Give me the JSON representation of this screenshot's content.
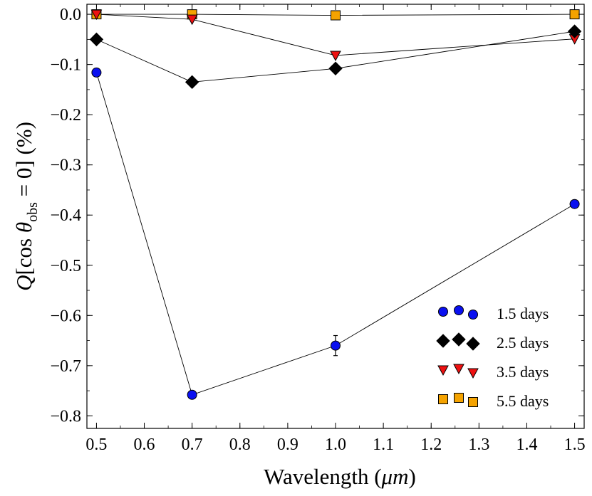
{
  "chart_data": {
    "type": "scatter",
    "title": "",
    "xlabel_main": "Wavelength (",
    "xlabel_unit": "μm",
    "xlabel_close": ")",
    "ylabel": "Q[cos θobs = 0] (%)",
    "ylabel_parts": {
      "q": "Q",
      "open": "[cos ",
      "theta": "θ",
      "sub": "obs",
      "rest": " = 0] (%)"
    },
    "xlim": [
      0.48,
      1.52
    ],
    "ylim": [
      -0.825,
      0.02
    ],
    "xticks": [
      0.5,
      0.6,
      0.7,
      0.8,
      0.9,
      1.0,
      1.1,
      1.2,
      1.3,
      1.4,
      1.5
    ],
    "xtick_labels": [
      "0.5",
      "0.6",
      "0.7",
      "0.8",
      "0.9",
      "1.0",
      "1.1",
      "1.2",
      "1.3",
      "1.4",
      "1.5"
    ],
    "yticks": [
      0.0,
      -0.1,
      -0.2,
      -0.3,
      -0.4,
      -0.5,
      -0.6,
      -0.7,
      -0.8
    ],
    "ytick_labels": [
      "0.0",
      "−0.1",
      "−0.2",
      "−0.3",
      "−0.4",
      "−0.5",
      "−0.6",
      "−0.7",
      "−0.8"
    ],
    "legend_position": "lower-right",
    "series": [
      {
        "name": "1.5 days",
        "marker": "circle",
        "color": "#0a10f0",
        "x": [
          0.5,
          0.7,
          1.0,
          1.5
        ],
        "y": [
          -0.116,
          -0.758,
          -0.66,
          -0.378
        ],
        "yerr": [
          0,
          0,
          0.02,
          0
        ]
      },
      {
        "name": "2.5 days",
        "marker": "diamond",
        "color": "#000000",
        "x": [
          0.5,
          0.7,
          1.0,
          1.5
        ],
        "y": [
          -0.05,
          -0.135,
          -0.108,
          -0.034
        ],
        "yerr": [
          0,
          0,
          0,
          0
        ]
      },
      {
        "name": "3.5 days",
        "marker": "triangle-down",
        "color": "#ee1111",
        "x": [
          0.5,
          0.7,
          1.0,
          1.5
        ],
        "y": [
          0.0,
          -0.01,
          -0.082,
          -0.049
        ],
        "yerr": [
          0,
          0,
          0,
          0
        ]
      },
      {
        "name": "5.5 days",
        "marker": "square",
        "color": "#f5a300",
        "x": [
          0.5,
          0.7,
          1.0,
          1.5
        ],
        "y": [
          0.0,
          0.0,
          -0.002,
          0.0
        ],
        "yerr": [
          0,
          0,
          0,
          0
        ]
      }
    ]
  }
}
